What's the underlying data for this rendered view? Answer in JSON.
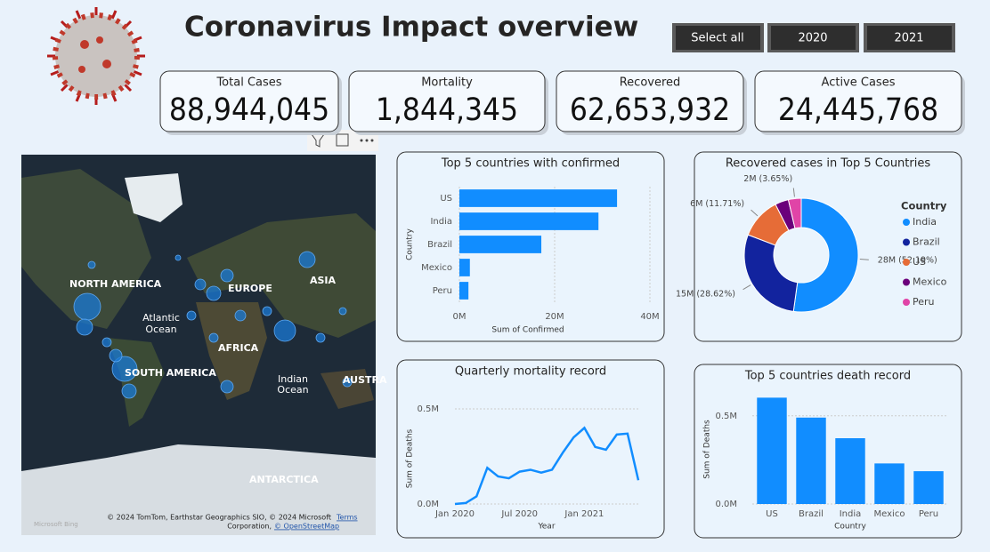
{
  "header": {
    "title": "Coronavirus Impact overview",
    "buttons": [
      "Select all",
      "2020",
      "2021"
    ]
  },
  "kpis": [
    {
      "label": "Total Cases",
      "value": "88,944,045"
    },
    {
      "label": "Mortality",
      "value": "1,844,345"
    },
    {
      "label": "Recovered",
      "value": "62,653,932"
    },
    {
      "label": "Active Cases",
      "value": "24,445,768"
    }
  ],
  "map": {
    "labels": [
      "NORTH AMERICA",
      "EUROPE",
      "ASIA",
      "Atlantic",
      "Ocean",
      "AFRICA",
      "SOUTH AMERICA",
      "Indian",
      "Ocean",
      "AUSTRA",
      "ANTARCTICA"
    ],
    "attribution": [
      "© 2024 TomTom, Earthstar Geographics SIO, © 2024 Microsoft",
      "Terms",
      "Corporation,",
      "© OpenStreetMap",
      "Microsoft Bing"
    ]
  },
  "chart_data": [
    {
      "type": "hbar",
      "title": "Top 5 countries with confirmed",
      "x_label": "Sum of Confirmed",
      "y_label": "Country",
      "categories": [
        "US",
        "India",
        "Brazil",
        "Mexico",
        "Peru"
      ],
      "values": [
        33100000,
        29200000,
        17200000,
        2200000,
        1900000
      ],
      "color": "#118DFF",
      "xlim": [
        0,
        40000000
      ],
      "xticks": [
        {
          "value": 0,
          "label": "0M"
        },
        {
          "value": 20000000,
          "label": "20M"
        },
        {
          "value": 40000000,
          "label": "40M"
        }
      ],
      "grid": true
    },
    {
      "type": "donut",
      "title": "Recovered cases in Top 5 Countries",
      "legend_title": "Country",
      "categories": [
        "India",
        "Brazil",
        "US",
        "Mexico",
        "Peru"
      ],
      "values": [
        52.19,
        28.62,
        11.71,
        3.83,
        3.65
      ],
      "value_labels": [
        "28M (52.19%)",
        "15M (28.62%)",
        "6M (11.71%)",
        null,
        "2M (3.65%)"
      ],
      "colors": [
        "#118DFF",
        "#12239E",
        "#E66C37",
        "#6B007B",
        "#E044A7"
      ],
      "legend": "right"
    },
    {
      "type": "line",
      "title": "Quarterly mortality record",
      "x_label": "Year",
      "y_label": "Sum of Deaths",
      "x": [
        "2020-01",
        "2020-02",
        "2020-03",
        "2020-04",
        "2020-05",
        "2020-06",
        "2020-07",
        "2020-08",
        "2020-09",
        "2020-10",
        "2020-11",
        "2020-12",
        "2021-01",
        "2021-02",
        "2021-03",
        "2021-04",
        "2021-05",
        "2021-06"
      ],
      "series": [
        {
          "name": "Sum of Deaths",
          "color": "#118DFF",
          "values": [
            0,
            5000,
            40000,
            190000,
            145000,
            135000,
            170000,
            180000,
            165000,
            180000,
            270000,
            350000,
            400000,
            300000,
            285000,
            365000,
            370000,
            125000
          ]
        }
      ],
      "xlim": [
        "2020-01",
        "2021-06"
      ],
      "xticks": [
        {
          "value": "2020-01",
          "label": "Jan 2020"
        },
        {
          "value": "2020-07",
          "label": "Jul 2020"
        },
        {
          "value": "2021-01",
          "label": "Jan 2021"
        }
      ],
      "ylim": [
        0,
        570000
      ],
      "yticks": [
        {
          "value": 0,
          "label": "0.0M"
        },
        {
          "value": 500000,
          "label": "0.5M"
        }
      ],
      "grid": true
    },
    {
      "type": "bar",
      "title": "Top 5 countries death record",
      "x_label": "Country",
      "y_label": "Sum of Deaths",
      "categories": [
        "US",
        "Brazil",
        "India",
        "Mexico",
        "Peru"
      ],
      "values": [
        603000,
        490000,
        373000,
        230000,
        186000
      ],
      "color": "#118DFF",
      "ylim": [
        0,
        620000
      ],
      "yticks": [
        {
          "value": 0,
          "label": "0.0M"
        },
        {
          "value": 500000,
          "label": "0.5M"
        }
      ],
      "grid": true
    }
  ]
}
